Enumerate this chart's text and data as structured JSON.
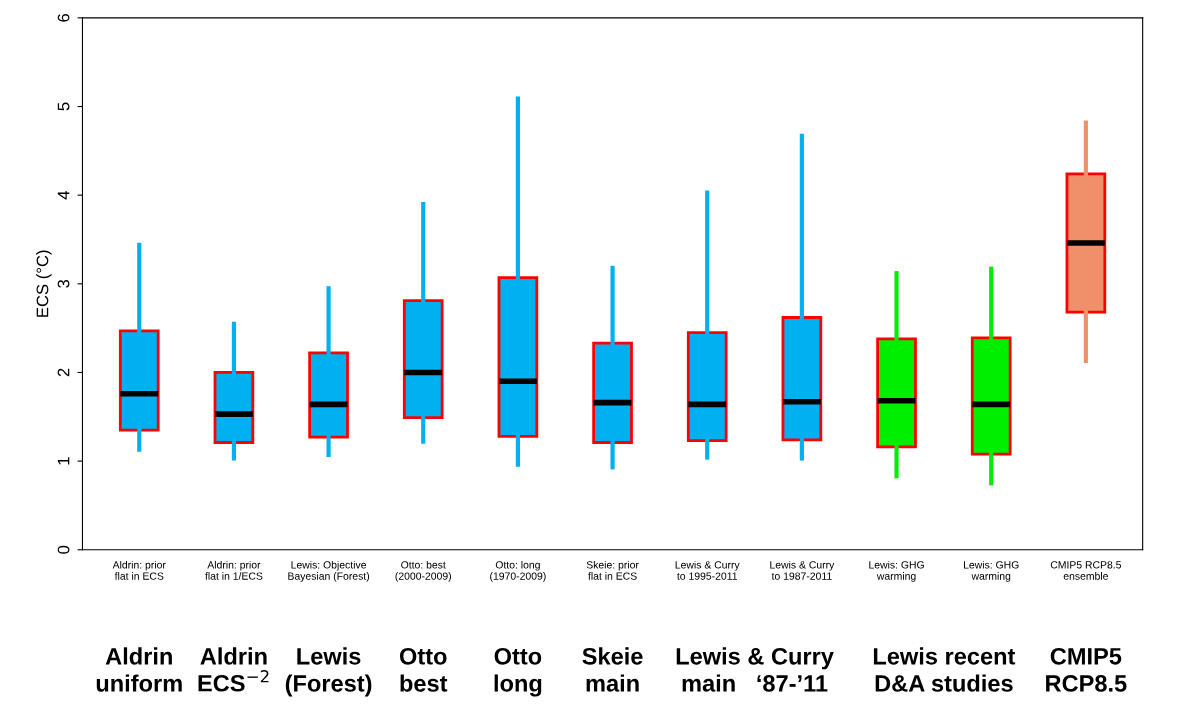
{
  "chart_data": {
    "type": "box",
    "ylabel": "ECS (°C)",
    "categories": [
      "Aldrin: prior\nflat in ECS",
      "Aldrin: prior\nflat in 1/ECS",
      "Lewis: Objective\nBayesian (Forest)",
      "Otto: best\n(2000-2009)",
      "Otto: long\n(1970-2009)",
      "Skeie: prior\nflat in ECS",
      "Lewis & Curry\nto 1995-2011",
      "Lewis & Curry\nto 1987-2011",
      "Lewis: GHG\nwarming",
      "Lewis: GHG\nwarming",
      "CMIP5 RCP8.5\nensemble"
    ],
    "boxes": [
      {
        "low": 1.13,
        "q1": 1.35,
        "median": 1.76,
        "q3": 2.47,
        "high": 3.44
      },
      {
        "low": 1.03,
        "q1": 1.21,
        "median": 1.53,
        "q3": 2.0,
        "high": 2.55
      },
      {
        "low": 1.07,
        "q1": 1.27,
        "median": 1.64,
        "q3": 2.22,
        "high": 2.95
      },
      {
        "low": 1.22,
        "q1": 1.49,
        "median": 2.0,
        "q3": 2.81,
        "high": 3.9
      },
      {
        "low": 0.96,
        "q1": 1.28,
        "median": 1.9,
        "q3": 3.07,
        "high": 5.09
      },
      {
        "low": 0.93,
        "q1": 1.21,
        "median": 1.66,
        "q3": 2.33,
        "high": 3.18
      },
      {
        "low": 1.04,
        "q1": 1.23,
        "median": 1.64,
        "q3": 2.45,
        "high": 4.03
      },
      {
        "low": 1.03,
        "q1": 1.24,
        "median": 1.67,
        "q3": 2.62,
        "high": 4.67
      },
      {
        "low": 0.83,
        "q1": 1.16,
        "median": 1.68,
        "q3": 2.38,
        "high": 3.12
      },
      {
        "low": 0.75,
        "q1": 1.08,
        "median": 1.64,
        "q3": 2.39,
        "high": 3.17
      },
      {
        "low": 2.13,
        "q1": 2.68,
        "median": 3.46,
        "q3": 4.24,
        "high": 4.82
      }
    ],
    "colors": [
      "#00b0f0",
      "#00b0f0",
      "#00b0f0",
      "#00b0f0",
      "#00b0f0",
      "#00b0f0",
      "#00b0f0",
      "#00b0f0",
      "#00ee00",
      "#00ee00",
      "#f0906a"
    ],
    "ylim": [
      0,
      6
    ],
    "yticks": [
      0,
      1,
      2,
      3,
      4,
      5,
      6
    ],
    "annotations": [
      "Aldrin\nuniform",
      "Aldrin\nECS$^{−2}$",
      "Lewis\n(Forest)",
      "Otto\nbest",
      "Otto\nlong",
      "Skeie\nmain",
      "Lewis & Curry\nmain   ‘87-’11",
      "Lewis recent\nD&A studies",
      "CMIP5\nRCP8.5"
    ]
  }
}
